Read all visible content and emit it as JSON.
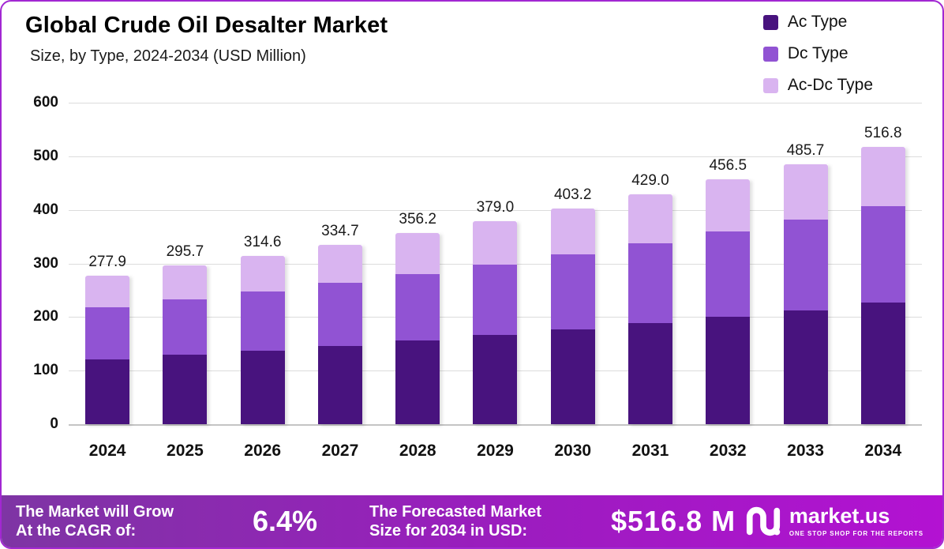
{
  "header": {
    "title": "Global Crude Oil Desalter Market",
    "subtitle": "Size, by Type, 2024-2034 (USD Million)"
  },
  "chart_data": {
    "type": "bar",
    "stacked": true,
    "title": "Global Crude Oil Desalter Market",
    "subtitle": "Size, by Type, 2024-2034 (USD Million)",
    "categories": [
      "2024",
      "2025",
      "2026",
      "2027",
      "2028",
      "2029",
      "2030",
      "2031",
      "2032",
      "2033",
      "2034"
    ],
    "series": [
      {
        "name": "Ac Type",
        "color": "#48137e",
        "values": [
          121.0,
          129.0,
          137.5,
          146.5,
          156.0,
          166.0,
          176.5,
          188.0,
          200.0,
          213.0,
          226.5
        ]
      },
      {
        "name": "Dc Type",
        "color": "#9153d3",
        "values": [
          97.0,
          103.5,
          110.0,
          117.0,
          124.5,
          132.5,
          141.0,
          150.0,
          159.5,
          169.5,
          180.5
        ]
      },
      {
        "name": "Ac-Dc Type",
        "color": "#d9b4f0",
        "values": [
          59.9,
          63.2,
          67.1,
          71.2,
          75.7,
          80.5,
          85.7,
          91.0,
          97.0,
          103.2,
          109.8
        ]
      }
    ],
    "totals": [
      277.9,
      295.7,
      314.6,
      334.7,
      356.2,
      379.0,
      403.2,
      429.0,
      456.5,
      485.7,
      516.8
    ],
    "total_labels": [
      "277.9",
      "295.7",
      "314.6",
      "334.7",
      "356.2",
      "379.0",
      "403.2",
      "429.0",
      "456.5",
      "485.7",
      "516.8"
    ],
    "ylim": [
      0,
      600
    ],
    "yticks": [
      0,
      100,
      200,
      300,
      400,
      500,
      600
    ],
    "grid": true,
    "legend_position": "top-right"
  },
  "footer": {
    "cagr_label_line1": "The Market will Grow",
    "cagr_label_line2": "At the CAGR of:",
    "cagr_value": "6.4%",
    "forecast_label_line1": "The Forecasted Market",
    "forecast_label_line2": "Size for 2034 in USD:",
    "forecast_value": "$516.8 M",
    "brand": "market.us",
    "brand_tagline": "ONE STOP SHOP FOR THE REPORTS"
  },
  "colors": {
    "card_border": "#a228d2",
    "banner_gradient_start": "#7e35a4",
    "banner_gradient_end": "#b312d2",
    "gridline": "#dcdcdc"
  }
}
